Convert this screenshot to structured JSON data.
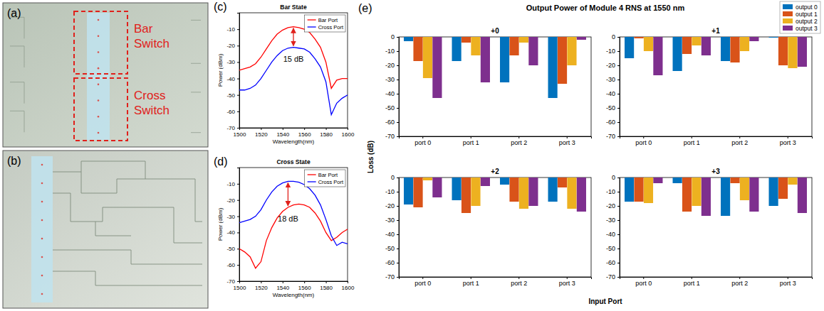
{
  "images": [
    {
      "label": "(a)",
      "annotations": [
        "Bar Switch",
        "Cross Switch"
      ]
    },
    {
      "label": "(b)"
    }
  ],
  "chart_data": [
    {
      "type": "line",
      "label": "(c)",
      "title": "Bar State",
      "x_label": "Wavelength(nm)",
      "y_label": "Power (dBm)",
      "x": [
        1500,
        1505,
        1510,
        1515,
        1520,
        1525,
        1530,
        1535,
        1540,
        1545,
        1550,
        1555,
        1560,
        1565,
        1570,
        1575,
        1580,
        1585,
        1590,
        1595,
        1600
      ],
      "xlim": [
        1500,
        1600
      ],
      "xticks": [
        1500,
        1520,
        1540,
        1560,
        1580,
        1600
      ],
      "ylim": [
        -70,
        0
      ],
      "yticks": [
        -70,
        -60,
        -50,
        -40,
        -30,
        -20,
        -10
      ],
      "legend": "top-right",
      "annotations": [
        "15 dB"
      ],
      "series": [
        {
          "name": "Bar Port",
          "color": "#ff0000",
          "values": [
            -35,
            -34,
            -33,
            -31,
            -27,
            -22,
            -17,
            -13,
            -10.5,
            -9,
            -8.5,
            -9,
            -10,
            -12,
            -16,
            -21,
            -30,
            -46,
            -41,
            -40,
            -40
          ]
        },
        {
          "name": "Cross Port",
          "color": "#0000ff",
          "values": [
            -47,
            -47,
            -46,
            -44,
            -40,
            -35,
            -30,
            -26,
            -23,
            -21.5,
            -21,
            -21.5,
            -22,
            -24,
            -28,
            -33,
            -42,
            -62,
            -55,
            -52,
            -50
          ]
        }
      ]
    },
    {
      "type": "line",
      "label": "(d)",
      "title": "Cross State",
      "x_label": "Wavelength(nm)",
      "y_label": "Power (dBm)",
      "x": [
        1500,
        1505,
        1510,
        1515,
        1520,
        1525,
        1530,
        1535,
        1540,
        1545,
        1550,
        1555,
        1560,
        1565,
        1570,
        1575,
        1580,
        1585,
        1590,
        1595,
        1600
      ],
      "xlim": [
        1500,
        1600
      ],
      "xticks": [
        1500,
        1520,
        1540,
        1560,
        1580,
        1600
      ],
      "ylim": [
        -70,
        0
      ],
      "yticks": [
        -70,
        -60,
        -50,
        -40,
        -30,
        -20,
        -10
      ],
      "legend": "top-right",
      "annotations": [
        "18 dB"
      ],
      "series": [
        {
          "name": "Bar Port",
          "color": "#ff0000",
          "values": [
            -50,
            -52,
            -55,
            -62,
            -58,
            -45,
            -37,
            -31,
            -27,
            -24.5,
            -23,
            -22.5,
            -23,
            -24.5,
            -28,
            -33,
            -40,
            -45,
            -43,
            -40,
            -38
          ]
        },
        {
          "name": "Cross Port",
          "color": "#0000ff",
          "values": [
            -34,
            -33,
            -32,
            -30,
            -26,
            -20,
            -15,
            -11.5,
            -9.5,
            -8.5,
            -8.5,
            -9,
            -10.5,
            -13,
            -17,
            -23,
            -32,
            -42,
            -48,
            -46,
            -47
          ]
        }
      ]
    },
    {
      "type": "bar",
      "label": "(e)",
      "title": "Output Power of Module 4 RNS at 1550 nm",
      "x_label": "Input Port",
      "y_label": "Loss (dB)",
      "categories": [
        "port 0",
        "port 1",
        "port 2",
        "port 3"
      ],
      "ylim": [
        -70,
        0
      ],
      "yticks": [
        0,
        -10,
        -20,
        -30,
        -40,
        -50,
        -60,
        -70
      ],
      "legend": "top-right",
      "series": [
        {
          "name": "output 0",
          "color": "#0072bd"
        },
        {
          "name": "output 1",
          "color": "#d95319"
        },
        {
          "name": "output 2",
          "color": "#edb120"
        },
        {
          "name": "output 3",
          "color": "#7e2f8e"
        }
      ],
      "panels": [
        {
          "title": "+0",
          "values": [
            [
              -3,
              -17,
              -32,
              -43
            ],
            [
              -17,
              -4,
              -13,
              -33
            ],
            [
              -29,
              -13,
              -4,
              -20
            ],
            [
              -43,
              -32,
              -20,
              -2
            ]
          ]
        },
        {
          "title": "+1",
          "values": [
            [
              -15,
              -24,
              -17,
              -0.5
            ],
            [
              -1,
              -12,
              -18,
              -20
            ],
            [
              -10,
              -6,
              -10,
              -22
            ],
            [
              -27,
              -13,
              -3,
              -21
            ]
          ]
        },
        {
          "title": "+2",
          "values": [
            [
              -19,
              -16,
              -5,
              -17
            ],
            [
              -21,
              -25,
              -17,
              -7
            ],
            [
              -2,
              -20,
              -22,
              -22
            ],
            [
              -14,
              -6,
              -20,
              -24
            ]
          ]
        },
        {
          "title": "+3",
          "values": [
            [
              -17,
              -4,
              -27,
              -20
            ],
            [
              -17,
              -24,
              -4,
              -15
            ],
            [
              -18,
              -20,
              -16,
              -5
            ],
            [
              -4,
              -27,
              -24,
              -25
            ]
          ]
        }
      ]
    }
  ]
}
